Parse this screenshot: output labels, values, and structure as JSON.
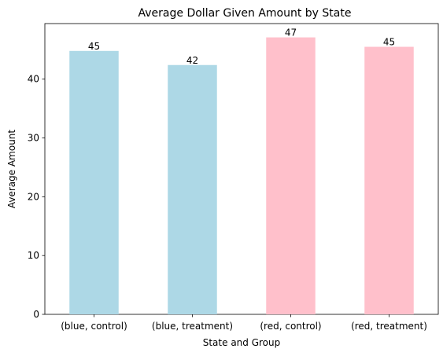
{
  "chart_data": {
    "type": "bar",
    "title": "Average Dollar Given Amount by State",
    "xlabel": "State and Group",
    "ylabel": "Average Amount",
    "categories": [
      "(blue, control)",
      "(blue, treatment)",
      "(red, control)",
      "(red, treatment)"
    ],
    "values": [
      44.8,
      42.4,
      47.1,
      45.5
    ],
    "data_labels": [
      "45",
      "42",
      "47",
      "45"
    ],
    "colors": [
      "#add8e6",
      "#add8e6",
      "#ffc0cb",
      "#ffc0cb"
    ],
    "ylim": [
      0,
      49.45
    ],
    "yticks": [
      0,
      10,
      20,
      30,
      40
    ],
    "grid": false,
    "legend": "none"
  }
}
